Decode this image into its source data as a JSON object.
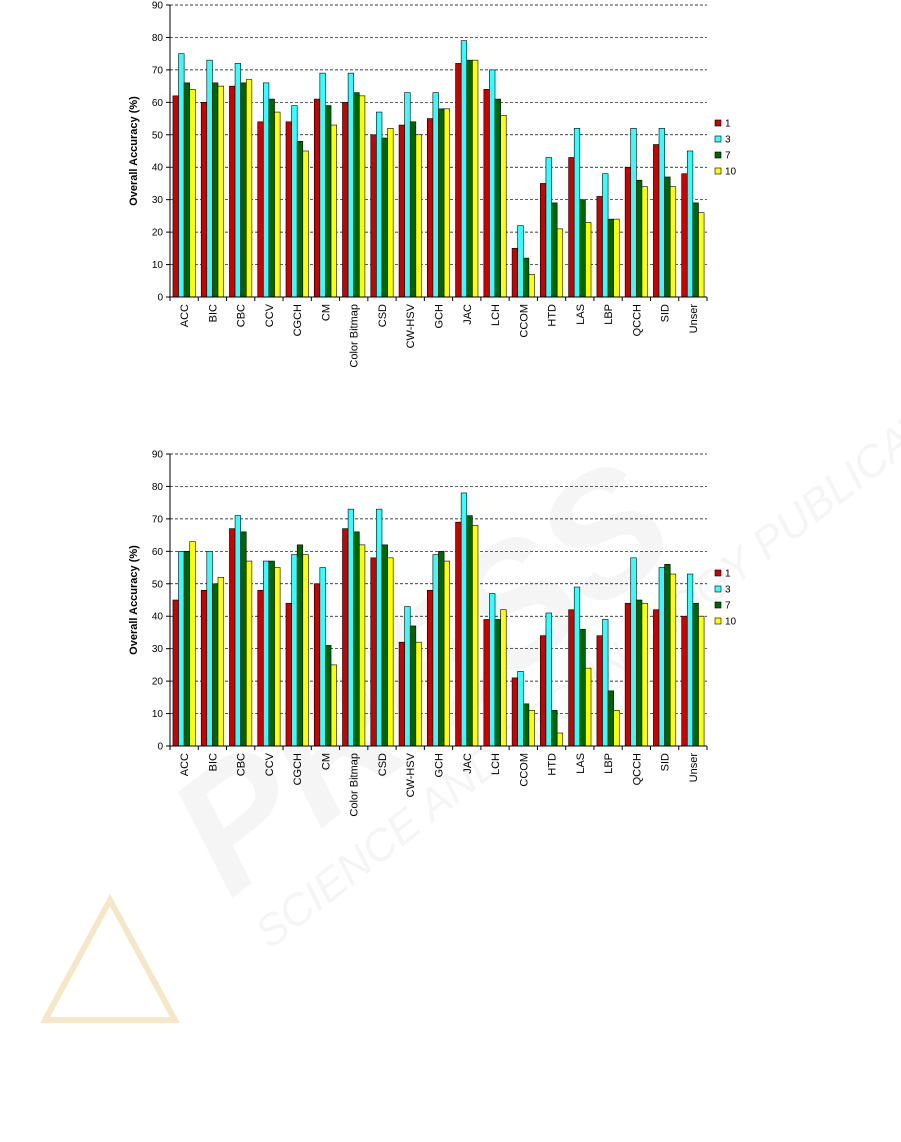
{
  "watermark": {
    "text_big": "PRESS",
    "text_small": "SCIENCE AND TECHNOLOGY PUBLICATIONS"
  },
  "colors": {
    "series": [
      "#cc0000",
      "#33ffff",
      "#006600",
      "#ffff00"
    ],
    "grid": "#000000",
    "axis": "#000000"
  },
  "chart_data": [
    {
      "type": "bar",
      "ylabel": "Overall Accuracy (%)",
      "xlabel": "",
      "ylim": [
        0,
        90
      ],
      "yticks": [
        0,
        10,
        20,
        30,
        40,
        50,
        60,
        70,
        80,
        90
      ],
      "grid": "dashed horizontal",
      "legend_position": "right",
      "categories": [
        "ACC",
        "BIC",
        "CBC",
        "CCV",
        "CGCH",
        "CM",
        "Color Bitmap",
        "CSD",
        "CW-HSV",
        "GCH",
        "JAC",
        "LCH",
        "CCOM",
        "HTD",
        "LAS",
        "LBP",
        "QCCH",
        "SID",
        "Unser"
      ],
      "series": [
        {
          "name": "1",
          "values": [
            62,
            60,
            65,
            54,
            54,
            61,
            60,
            50,
            53,
            55,
            72,
            64,
            15,
            35,
            43,
            31,
            40,
            47,
            38
          ]
        },
        {
          "name": "3",
          "values": [
            75,
            73,
            72,
            66,
            59,
            69,
            69,
            57,
            63,
            63,
            79,
            70,
            22,
            43,
            52,
            38,
            52,
            52,
            45
          ]
        },
        {
          "name": "7",
          "values": [
            66,
            66,
            66,
            61,
            48,
            59,
            63,
            49,
            54,
            58,
            73,
            61,
            12,
            29,
            30,
            24,
            36,
            37,
            29
          ]
        },
        {
          "name": "10",
          "values": [
            64,
            65,
            67,
            57,
            45,
            53,
            62,
            52,
            50,
            58,
            73,
            56,
            7,
            21,
            23,
            24,
            34,
            34,
            26
          ]
        }
      ]
    },
    {
      "type": "bar",
      "ylabel": "Overall Accuracy (%)",
      "xlabel": "",
      "ylim": [
        0,
        90
      ],
      "yticks": [
        0,
        10,
        20,
        30,
        40,
        50,
        60,
        70,
        80,
        90
      ],
      "grid": "dashed horizontal",
      "legend_position": "right",
      "categories": [
        "ACC",
        "BIC",
        "CBC",
        "CCV",
        "CGCH",
        "CM",
        "Color Bitmap",
        "CSD",
        "CW-HSV",
        "GCH",
        "JAC",
        "LCH",
        "CCOM",
        "HTD",
        "LAS",
        "LBP",
        "QCCH",
        "SID",
        "Unser"
      ],
      "series": [
        {
          "name": "1",
          "values": [
            45,
            48,
            67,
            48,
            44,
            50,
            67,
            58,
            32,
            48,
            69,
            39,
            21,
            34,
            42,
            34,
            44,
            42,
            40
          ]
        },
        {
          "name": "3",
          "values": [
            60,
            60,
            71,
            57,
            59,
            55,
            73,
            73,
            43,
            59,
            78,
            47,
            23,
            41,
            49,
            39,
            58,
            55,
            53
          ]
        },
        {
          "name": "7",
          "values": [
            60,
            50,
            66,
            57,
            62,
            31,
            66,
            62,
            37,
            60,
            71,
            39,
            13,
            11,
            36,
            17,
            45,
            56,
            44
          ]
        },
        {
          "name": "10",
          "values": [
            63,
            52,
            57,
            55,
            59,
            25,
            62,
            58,
            32,
            57,
            68,
            42,
            11,
            4,
            24,
            11,
            44,
            53,
            40
          ]
        }
      ]
    }
  ]
}
